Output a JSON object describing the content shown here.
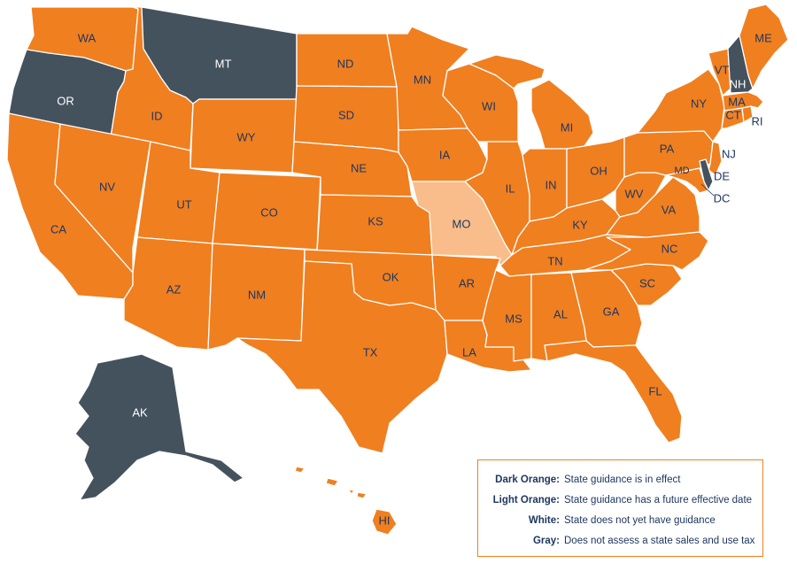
{
  "colors": {
    "dark_orange": "#f07f20",
    "light_orange": "#f8bd8a",
    "gray": "#44525e",
    "label": "#1e3760",
    "border": "#ffffff"
  },
  "states": {
    "WA": {
      "label": "WA",
      "status": "dark_orange"
    },
    "OR": {
      "label": "OR",
      "status": "gray"
    },
    "CA": {
      "label": "CA",
      "status": "dark_orange"
    },
    "ID": {
      "label": "ID",
      "status": "dark_orange"
    },
    "NV": {
      "label": "NV",
      "status": "dark_orange"
    },
    "MT": {
      "label": "MT",
      "status": "gray"
    },
    "WY": {
      "label": "WY",
      "status": "dark_orange"
    },
    "UT": {
      "label": "UT",
      "status": "dark_orange"
    },
    "AZ": {
      "label": "AZ",
      "status": "dark_orange"
    },
    "CO": {
      "label": "CO",
      "status": "dark_orange"
    },
    "NM": {
      "label": "NM",
      "status": "dark_orange"
    },
    "ND": {
      "label": "ND",
      "status": "dark_orange"
    },
    "SD": {
      "label": "SD",
      "status": "dark_orange"
    },
    "NE": {
      "label": "NE",
      "status": "dark_orange"
    },
    "KS": {
      "label": "KS",
      "status": "dark_orange"
    },
    "OK": {
      "label": "OK",
      "status": "dark_orange"
    },
    "TX": {
      "label": "TX",
      "status": "dark_orange"
    },
    "MN": {
      "label": "MN",
      "status": "dark_orange"
    },
    "IA": {
      "label": "IA",
      "status": "dark_orange"
    },
    "MO": {
      "label": "MO",
      "status": "light_orange"
    },
    "AR": {
      "label": "AR",
      "status": "dark_orange"
    },
    "LA": {
      "label": "LA",
      "status": "dark_orange"
    },
    "WI": {
      "label": "WI",
      "status": "dark_orange"
    },
    "IL": {
      "label": "IL",
      "status": "dark_orange"
    },
    "MI": {
      "label": "MI",
      "status": "dark_orange"
    },
    "IN": {
      "label": "IN",
      "status": "dark_orange"
    },
    "OH": {
      "label": "OH",
      "status": "dark_orange"
    },
    "KY": {
      "label": "KY",
      "status": "dark_orange"
    },
    "TN": {
      "label": "TN",
      "status": "dark_orange"
    },
    "MS": {
      "label": "MS",
      "status": "dark_orange"
    },
    "AL": {
      "label": "AL",
      "status": "dark_orange"
    },
    "GA": {
      "label": "GA",
      "status": "dark_orange"
    },
    "FL": {
      "label": "FL",
      "status": "dark_orange"
    },
    "SC": {
      "label": "SC",
      "status": "dark_orange"
    },
    "NC": {
      "label": "NC",
      "status": "dark_orange"
    },
    "VA": {
      "label": "VA",
      "status": "dark_orange"
    },
    "WV": {
      "label": "WV",
      "status": "dark_orange"
    },
    "PA": {
      "label": "PA",
      "status": "dark_orange"
    },
    "NY": {
      "label": "NY",
      "status": "dark_orange"
    },
    "MD": {
      "label": "MD",
      "status": "dark_orange"
    },
    "DE": {
      "label": "DE",
      "status": "gray"
    },
    "DC": {
      "label": "DC",
      "status": "dark_orange"
    },
    "NJ": {
      "label": "NJ",
      "status": "dark_orange"
    },
    "CT": {
      "label": "CT",
      "status": "dark_orange"
    },
    "RI": {
      "label": "RI",
      "status": "dark_orange"
    },
    "MA": {
      "label": "MA",
      "status": "dark_orange"
    },
    "VT": {
      "label": "VT",
      "status": "dark_orange"
    },
    "NH": {
      "label": "NH",
      "status": "gray"
    },
    "ME": {
      "label": "ME",
      "status": "dark_orange"
    },
    "AK": {
      "label": "AK",
      "status": "gray"
    },
    "HI": {
      "label": "HI",
      "status": "dark_orange"
    }
  },
  "legend": [
    {
      "key": "Dark Orange:",
      "desc": "State guidance is in effect"
    },
    {
      "key": "Light Orange:",
      "desc": "State guidance has a future effective date"
    },
    {
      "key": "White:",
      "desc": "State does not yet have guidance"
    },
    {
      "key": "Gray:",
      "desc": "Does not assess a state sales and use tax"
    }
  ]
}
